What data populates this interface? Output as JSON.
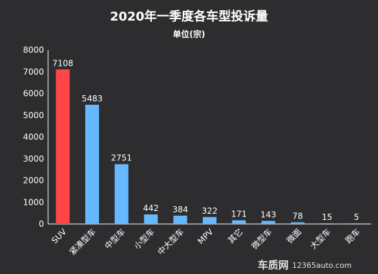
{
  "chart_data": {
    "type": "bar",
    "title": "2020年一季度各车型投诉量",
    "subtitle": "单位(宗)",
    "categories": [
      "SUV",
      "紧凑型车",
      "中型车",
      "小型车",
      "中大型车",
      "MPV",
      "其它",
      "微型车",
      "微面",
      "大型车",
      "跑车"
    ],
    "values": [
      7108,
      5483,
      2751,
      442,
      384,
      322,
      171,
      143,
      78,
      15,
      5
    ],
    "ylim": [
      0,
      8000
    ],
    "yticks": [
      0,
      1000,
      2000,
      3000,
      4000,
      5000,
      6000,
      7000,
      8000
    ],
    "highlight_index": 0,
    "colors": {
      "highlight": "#ff4545",
      "bar": "#66b8ff",
      "background": "#2d2d2f",
      "axis": "#ffffff"
    },
    "grid": false,
    "legend": "none"
  },
  "watermark": {
    "brand": "车质网",
    "url": "12365auto.com"
  }
}
